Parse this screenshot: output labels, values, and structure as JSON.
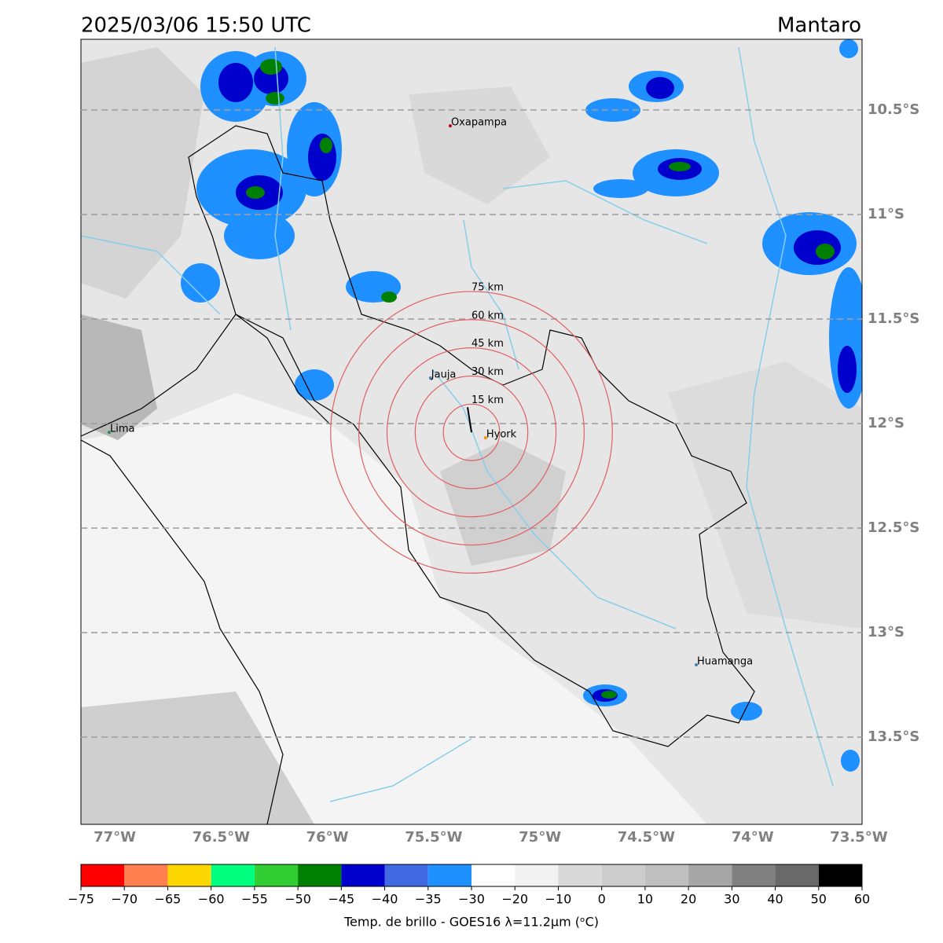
{
  "header": {
    "title": "2025/03/06 15:50 UTC",
    "region": "Mantaro"
  },
  "map": {
    "lonlim": [
      -77.159,
      -73.485
    ],
    "latlim": [
      -13.917,
      -10.162
    ],
    "xticks": [
      {
        "value": -77,
        "label": "77°W"
      },
      {
        "value": -76.5,
        "label": "76.5°W"
      },
      {
        "value": -76,
        "label": "76°W"
      },
      {
        "value": -75.5,
        "label": "75.5°W"
      },
      {
        "value": -75,
        "label": "75°W"
      },
      {
        "value": -74.5,
        "label": "74.5°W"
      },
      {
        "value": -74,
        "label": "74°W"
      },
      {
        "value": -73.5,
        "label": "73.5°W"
      }
    ],
    "yticks": [
      {
        "value": -10.5,
        "label": "10.5°S"
      },
      {
        "value": -11,
        "label": "11°S"
      },
      {
        "value": -11.5,
        "label": "11.5°S"
      },
      {
        "value": -12,
        "label": "12°S"
      },
      {
        "value": -12.5,
        "label": "12.5°S"
      },
      {
        "value": -13,
        "label": "13°S"
      },
      {
        "value": -13.5,
        "label": "13.5°S"
      }
    ],
    "cities": [
      {
        "name": "Oxapampa",
        "lon": -75.422,
        "lat": -10.576,
        "color": "#cc0000"
      },
      {
        "name": "Lima",
        "lon": -77.026,
        "lat": -12.042,
        "color": "#2e8b57"
      },
      {
        "name": "Jauja",
        "lon": -75.515,
        "lat": -11.782,
        "color": "#4682b4"
      },
      {
        "name": "Hyork",
        "lon": -75.256,
        "lat": -12.068,
        "color": "#ff8c00"
      },
      {
        "name": "Huamanga",
        "lon": -74.265,
        "lat": -13.154,
        "color": "#4682b4"
      }
    ],
    "rings_center": {
      "lon": -75.322,
      "lat": -12.042
    },
    "rings": [
      {
        "value": 15,
        "label": "15 km"
      },
      {
        "value": 30,
        "label": "30 km"
      },
      {
        "value": 45,
        "label": "45 km"
      },
      {
        "value": 60,
        "label": "60 km"
      },
      {
        "value": 75,
        "label": "75 km"
      }
    ]
  },
  "colorbar": {
    "label": "Temp. de brillo - GOES16 λ=11.2μm (ᵒC)",
    "ticks": [
      {
        "value": -75,
        "label": "−75"
      },
      {
        "value": -70,
        "label": "−70"
      },
      {
        "value": -65,
        "label": "−65"
      },
      {
        "value": -60,
        "label": "−60"
      },
      {
        "value": -55,
        "label": "−55"
      },
      {
        "value": -50,
        "label": "−50"
      },
      {
        "value": -45,
        "label": "−45"
      },
      {
        "value": -40,
        "label": "−40"
      },
      {
        "value": -35,
        "label": "−35"
      },
      {
        "value": -30,
        "label": "−30"
      },
      {
        "value": -20,
        "label": "−20"
      },
      {
        "value": -10,
        "label": "−10"
      },
      0,
      10,
      20,
      30,
      40,
      50,
      60
    ],
    "colors": [
      "#ff0000",
      "#ff7f50",
      "#ffd700",
      "#00ff7f",
      "#32cd32",
      "#008000",
      "#0000cd",
      "#4169e1",
      "#1e90ff",
      "#ffffff",
      "#f2f2f2",
      "#d9d9d9",
      "#cccccc",
      "#bfbfbf",
      "#a6a6a6",
      "#808080",
      "#696969",
      "#000000"
    ]
  }
}
